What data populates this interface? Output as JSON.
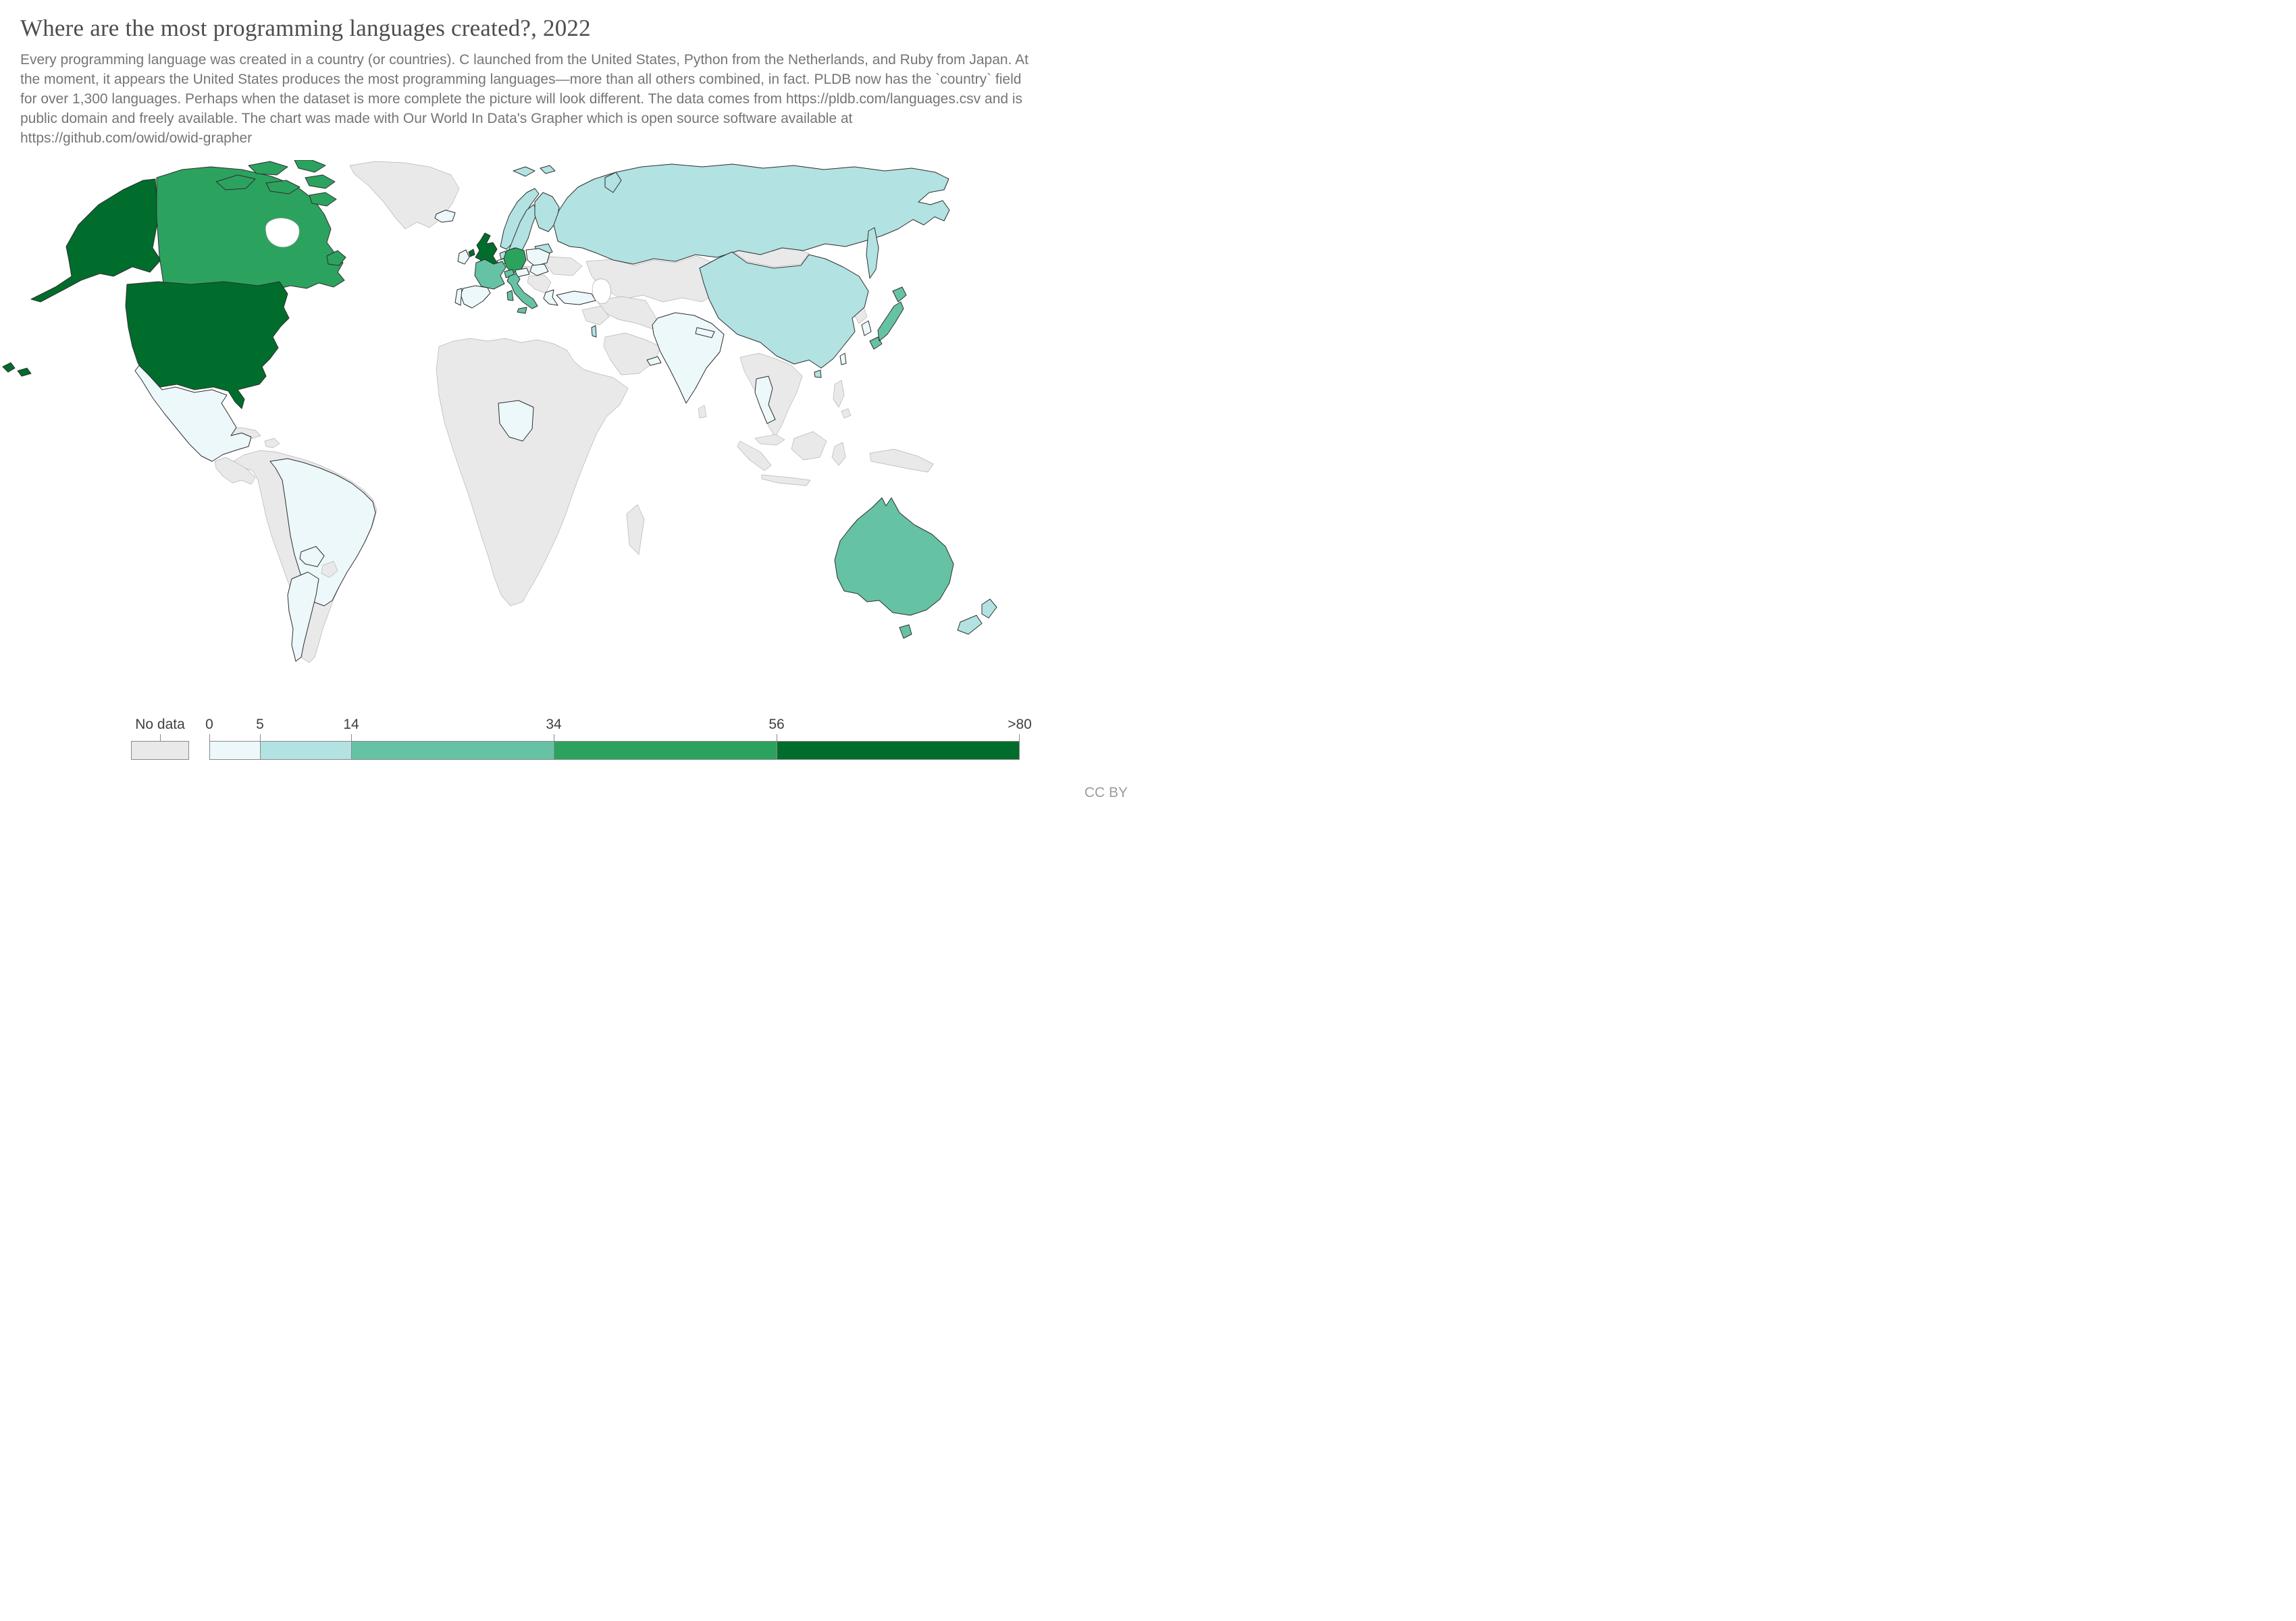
{
  "title": "Where are the most programming languages created?, 2022",
  "subtitle": "Every programming language was created in a country (or countries). C launched from the United States, Python from the Netherlands, and Ruby from Japan. At the moment, it appears the United States produces the most programming languages—more than all others combined, in fact. PLDB now has the `country` field for over 1,300 languages. Perhaps when the dataset is more complete the picture will look different. The data comes from https://pldb.com/languages.csv and is public domain and freely available. The chart was made with Our World In Data's Grapher which is open source software available at https://github.com/owid/owid-grapher",
  "license": "CC BY",
  "legend": {
    "no_data_label": "No data",
    "no_data_color": "#e9e9e9",
    "tick_labels": [
      "0",
      "5",
      "14",
      "34",
      "56",
      ">80"
    ],
    "tick_values": [
      0,
      5,
      14,
      34,
      56,
      80
    ],
    "bins": [
      {
        "id": "0-5",
        "color": "#edf8fb"
      },
      {
        "id": "5-14",
        "color": "#b2e2e2"
      },
      {
        "id": "14-34",
        "color": "#66c2a4"
      },
      {
        "id": "34-56",
        "color": "#2ca25f"
      },
      {
        "id": "56->80",
        "color": "#006d2c"
      }
    ]
  },
  "chart_data": {
    "type": "choropleth-map",
    "title": "Where are the most programming languages created?, 2022",
    "year": "2022",
    "unit": "programming languages created",
    "scale": "linear bins 0 to >80",
    "legend_bins": [
      "0-5",
      "5-14",
      "14-34",
      "34-56",
      "56->80"
    ],
    "countries": [
      {
        "id": "usa",
        "name": "United States",
        "bin": "56->80"
      },
      {
        "id": "uk",
        "name": "United Kingdom",
        "bin": "56->80"
      },
      {
        "id": "canada",
        "name": "Canada",
        "bin": "34-56"
      },
      {
        "id": "germany",
        "name": "Germany",
        "bin": "34-56"
      },
      {
        "id": "france",
        "name": "France",
        "bin": "14-34"
      },
      {
        "id": "switzerland",
        "name": "Switzerland",
        "bin": "14-34"
      },
      {
        "id": "italy",
        "name": "Italy",
        "bin": "14-34"
      },
      {
        "id": "japan",
        "name": "Japan",
        "bin": "14-34"
      },
      {
        "id": "australia",
        "name": "Australia",
        "bin": "14-34"
      },
      {
        "id": "russia",
        "name": "Russia",
        "bin": "5-14"
      },
      {
        "id": "china",
        "name": "China",
        "bin": "5-14"
      },
      {
        "id": "norway",
        "name": "Norway",
        "bin": "5-14"
      },
      {
        "id": "sweden",
        "name": "Sweden",
        "bin": "5-14"
      },
      {
        "id": "finland",
        "name": "Finland",
        "bin": "5-14"
      },
      {
        "id": "denmark",
        "name": "Denmark",
        "bin": "5-14"
      },
      {
        "id": "netherlands",
        "name": "Netherlands",
        "bin": "5-14"
      },
      {
        "id": "baltics",
        "name": "Baltic states",
        "bin": "5-14"
      },
      {
        "id": "new-zealand",
        "name": "New Zealand",
        "bin": "5-14"
      },
      {
        "id": "israel",
        "name": "Israel",
        "bin": "5-14"
      },
      {
        "id": "iceland",
        "name": "Iceland",
        "bin": "0-5"
      },
      {
        "id": "ireland",
        "name": "Ireland",
        "bin": "0-5"
      },
      {
        "id": "belgium",
        "name": "Belgium",
        "bin": "0-5"
      },
      {
        "id": "spain",
        "name": "Spain",
        "bin": "0-5"
      },
      {
        "id": "portugal",
        "name": "Portugal",
        "bin": "0-5"
      },
      {
        "id": "poland",
        "name": "Poland",
        "bin": "0-5"
      },
      {
        "id": "austria",
        "name": "Austria",
        "bin": "0-5"
      },
      {
        "id": "hungary",
        "name": "Hungary",
        "bin": "0-5"
      },
      {
        "id": "greece",
        "name": "Greece",
        "bin": "0-5"
      },
      {
        "id": "turkey",
        "name": "Turkey",
        "bin": "0-5"
      },
      {
        "id": "mexico",
        "name": "Mexico",
        "bin": "0-5"
      },
      {
        "id": "brazil",
        "name": "Brazil",
        "bin": "0-5"
      },
      {
        "id": "argentina",
        "name": "Argentina",
        "bin": "0-5"
      },
      {
        "id": "paraguay",
        "name": "Paraguay",
        "bin": "0-5"
      },
      {
        "id": "nigeria",
        "name": "Nigeria",
        "bin": "0-5"
      },
      {
        "id": "india",
        "name": "India",
        "bin": "0-5"
      },
      {
        "id": "nepal",
        "name": "Nepal",
        "bin": "0-5"
      },
      {
        "id": "south-korea",
        "name": "South Korea",
        "bin": "0-5"
      },
      {
        "id": "thailand",
        "name": "Thailand",
        "bin": "0-5"
      },
      {
        "id": "taiwan",
        "name": "Taiwan",
        "bin": "0-5"
      },
      {
        "id": "uae",
        "name": "United Arab Emirates",
        "bin": "0-5"
      }
    ],
    "no_data_regions": [
      "Greenland",
      "Mongolia",
      "Kazakhstan and Central Asia",
      "Iran / Afghanistan / Pakistan",
      "Saudi Arabia and most of Middle East",
      "Ukraine",
      "Czechia",
      "Balkans",
      "Most of Africa",
      "Chile",
      "Peru",
      "Colombia",
      "Venezuela",
      "Bolivia",
      "Ecuador",
      "Uruguay",
      "Guyanas",
      "Central America",
      "Cuba",
      "Hispaniola",
      "North Korea",
      "Myanmar / Laos / Vietnam / Cambodia",
      "Malaysia",
      "Indonesia",
      "Philippines",
      "Papua New Guinea",
      "Sri Lanka",
      "Madagascar"
    ]
  }
}
